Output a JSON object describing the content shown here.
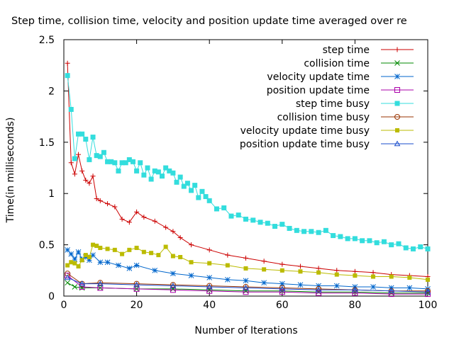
{
  "chart_data": {
    "type": "line",
    "title": "Step time, collision time, velocity and position update time averaged over re",
    "xlabel": "Number of Iterations",
    "ylabel": "Time(in milliseconds)",
    "xlim": [
      0,
      100
    ],
    "ylim": [
      0,
      2.5
    ],
    "xticks": [
      0,
      20,
      40,
      60,
      80,
      100
    ],
    "yticks": [
      0,
      0.5,
      1,
      1.5,
      2,
      2.5
    ],
    "ytick_labels": [
      "0",
      "0.5",
      "1",
      "1.5",
      "2",
      "2.5"
    ],
    "legend_position": "top-right",
    "grid": false,
    "series": [
      {
        "name": "step time",
        "color": "#cc0000",
        "marker": "plus",
        "x": [
          1,
          2,
          3,
          4,
          5,
          6,
          7,
          8,
          9,
          10,
          12,
          14,
          16,
          18,
          20,
          22,
          25,
          28,
          30,
          32,
          35,
          40,
          45,
          50,
          55,
          60,
          65,
          70,
          75,
          80,
          85,
          90,
          95,
          100
        ],
        "y": [
          2.27,
          1.3,
          1.19,
          1.38,
          1.22,
          1.13,
          1.1,
          1.17,
          0.95,
          0.93,
          0.9,
          0.87,
          0.75,
          0.72,
          0.82,
          0.77,
          0.73,
          0.67,
          0.63,
          0.57,
          0.5,
          0.45,
          0.4,
          0.37,
          0.34,
          0.31,
          0.29,
          0.27,
          0.25,
          0.24,
          0.23,
          0.21,
          0.2,
          0.19
        ]
      },
      {
        "name": "collision time",
        "color": "#008800",
        "marker": "cross",
        "x": [
          1,
          3,
          5,
          10,
          20,
          30,
          40,
          50,
          60,
          70,
          80,
          90,
          100
        ],
        "y": [
          0.13,
          0.09,
          0.08,
          0.08,
          0.07,
          0.07,
          0.06,
          0.05,
          0.05,
          0.04,
          0.04,
          0.03,
          0.03
        ]
      },
      {
        "name": "velocity update time",
        "color": "#0066cc",
        "marker": "star",
        "x": [
          1,
          2,
          3,
          4,
          5,
          6,
          7,
          8,
          10,
          12,
          15,
          18,
          20,
          25,
          30,
          35,
          40,
          45,
          50,
          55,
          60,
          65,
          70,
          75,
          80,
          85,
          90,
          95,
          100
        ],
        "y": [
          0.45,
          0.41,
          0.36,
          0.43,
          0.36,
          0.38,
          0.35,
          0.4,
          0.33,
          0.33,
          0.3,
          0.27,
          0.3,
          0.25,
          0.22,
          0.2,
          0.18,
          0.16,
          0.15,
          0.13,
          0.12,
          0.11,
          0.1,
          0.1,
          0.09,
          0.09,
          0.08,
          0.08,
          0.07
        ]
      },
      {
        "name": "position update time",
        "color": "#aa00aa",
        "marker": "square-open",
        "x": [
          1,
          5,
          10,
          20,
          30,
          40,
          50,
          60,
          70,
          80,
          90,
          100
        ],
        "y": [
          0.2,
          0.09,
          0.08,
          0.07,
          0.06,
          0.05,
          0.04,
          0.04,
          0.03,
          0.03,
          0.02,
          0.02
        ]
      },
      {
        "name": "step time busy",
        "color": "#33dddd",
        "marker": "square-filled",
        "x": [
          1,
          2,
          3,
          4,
          5,
          6,
          7,
          8,
          9,
          10,
          11,
          12,
          13,
          14,
          15,
          16,
          17,
          18,
          19,
          20,
          21,
          22,
          23,
          24,
          25,
          26,
          27,
          28,
          29,
          30,
          31,
          32,
          33,
          34,
          35,
          36,
          37,
          38,
          39,
          40,
          42,
          44,
          46,
          48,
          50,
          52,
          54,
          56,
          58,
          60,
          62,
          64,
          66,
          68,
          70,
          72,
          74,
          76,
          78,
          80,
          82,
          84,
          86,
          88,
          90,
          92,
          94,
          96,
          98,
          100
        ],
        "y": [
          2.15,
          1.82,
          1.34,
          1.58,
          1.58,
          1.53,
          1.33,
          1.55,
          1.37,
          1.36,
          1.4,
          1.31,
          1.31,
          1.3,
          1.22,
          1.3,
          1.3,
          1.33,
          1.31,
          1.22,
          1.3,
          1.18,
          1.25,
          1.14,
          1.22,
          1.21,
          1.17,
          1.25,
          1.22,
          1.2,
          1.11,
          1.16,
          1.07,
          1.1,
          1.03,
          1.08,
          0.96,
          1.02,
          0.97,
          0.93,
          0.85,
          0.86,
          0.78,
          0.79,
          0.75,
          0.74,
          0.72,
          0.71,
          0.68,
          0.7,
          0.66,
          0.64,
          0.63,
          0.63,
          0.62,
          0.64,
          0.59,
          0.58,
          0.56,
          0.56,
          0.54,
          0.54,
          0.52,
          0.53,
          0.5,
          0.51,
          0.47,
          0.46,
          0.48,
          0.46
        ]
      },
      {
        "name": "collision time busy",
        "color": "#993300",
        "marker": "circle-open",
        "x": [
          1,
          5,
          10,
          20,
          30,
          40,
          50,
          60,
          70,
          80,
          90,
          100
        ],
        "y": [
          0.22,
          0.12,
          0.13,
          0.12,
          0.11,
          0.1,
          0.09,
          0.08,
          0.07,
          0.06,
          0.05,
          0.05
        ]
      },
      {
        "name": "velocity update time busy",
        "color": "#bbbb00",
        "marker": "dot-filled",
        "x": [
          1,
          2,
          3,
          4,
          5,
          6,
          7,
          8,
          9,
          10,
          12,
          14,
          16,
          18,
          20,
          22,
          24,
          26,
          28,
          30,
          32,
          35,
          40,
          45,
          50,
          55,
          60,
          65,
          70,
          75,
          80,
          85,
          90,
          95,
          100
        ],
        "y": [
          0.3,
          0.33,
          0.32,
          0.29,
          0.35,
          0.4,
          0.38,
          0.5,
          0.49,
          0.47,
          0.46,
          0.45,
          0.41,
          0.45,
          0.47,
          0.43,
          0.42,
          0.4,
          0.48,
          0.39,
          0.38,
          0.33,
          0.32,
          0.3,
          0.27,
          0.26,
          0.25,
          0.24,
          0.23,
          0.21,
          0.2,
          0.19,
          0.19,
          0.18,
          0.16
        ]
      },
      {
        "name": "position update time busy",
        "color": "#1a4dcc",
        "marker": "triangle-open",
        "x": [
          1,
          5,
          10,
          20,
          30,
          40,
          50,
          60,
          70,
          80,
          90,
          100
        ],
        "y": [
          0.18,
          0.12,
          0.12,
          0.11,
          0.1,
          0.09,
          0.08,
          0.07,
          0.06,
          0.06,
          0.05,
          0.04
        ]
      }
    ]
  }
}
